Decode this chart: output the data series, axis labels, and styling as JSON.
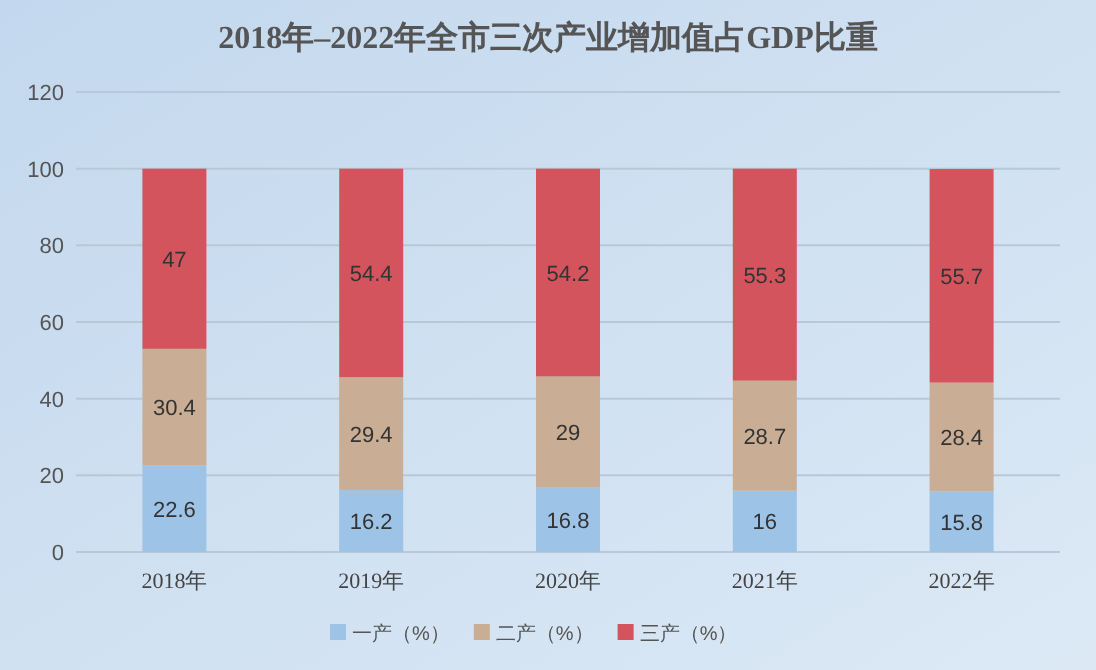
{
  "chart_data": {
    "type": "bar",
    "stacked": true,
    "title": "2018年–2022年全市三次产业增加值占GDP比重",
    "categories": [
      "2018年",
      "2019年",
      "2020年",
      "2021年",
      "2022年"
    ],
    "series": [
      {
        "name": "一产（%）",
        "color": "#9dc3e6",
        "values": [
          22.6,
          16.2,
          16.8,
          16,
          15.8
        ]
      },
      {
        "name": "二产（%）",
        "color": "#c9ad94",
        "values": [
          30.4,
          29.4,
          29,
          28.7,
          28.4
        ]
      },
      {
        "name": "三产（%）",
        "color": "#d4545e",
        "values": [
          47,
          54.4,
          54.2,
          55.3,
          55.7
        ]
      }
    ],
    "ylim": [
      0,
      120
    ],
    "yticks": [
      0,
      20,
      40,
      60,
      80,
      100,
      120
    ],
    "grid": "y",
    "legend": "bottom",
    "data_labels": true
  }
}
